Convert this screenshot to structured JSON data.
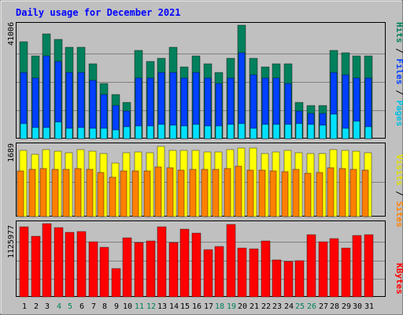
{
  "title": "Daily usage for December 2021",
  "colors": {
    "hits": "#00805c",
    "files": "#0040ff",
    "pages": "#00e0ff",
    "visits": "#ffff00",
    "sites": "#ff8000",
    "kbytes": "#ff0000",
    "title": "#0000ff",
    "weekend": "#00805c",
    "weekday": "#000000",
    "panel": "#c0c0c0"
  },
  "right_labels": {
    "pages": "Pages",
    "files": "Files",
    "hits": "Hits",
    "sep": " / ",
    "sites": "Sites",
    "visits": "Visits",
    "kbytes": "KBytes"
  },
  "chart_data": [
    {
      "type": "bar",
      "name": "hits-files-pages",
      "categories": [
        "1",
        "2",
        "3",
        "4",
        "5",
        "6",
        "7",
        "8",
        "9",
        "10",
        "11",
        "12",
        "13",
        "14",
        "15",
        "16",
        "17",
        "18",
        "19",
        "20",
        "21",
        "22",
        "23",
        "24",
        "25",
        "26",
        "27",
        "28",
        "29",
        "30",
        "31"
      ],
      "ymax_label": "41006",
      "ylim": [
        0,
        41006
      ],
      "series": [
        {
          "name": "Hits",
          "values": [
            35000,
            30000,
            38000,
            36000,
            33000,
            33000,
            27000,
            20000,
            16000,
            13000,
            32000,
            28000,
            29000,
            33000,
            26000,
            30000,
            27000,
            24000,
            29000,
            41000,
            29000,
            26000,
            27000,
            27000,
            13000,
            12000,
            12000,
            32000,
            31000,
            30000,
            30000
          ]
        },
        {
          "name": "Files",
          "values": [
            24000,
            22000,
            30000,
            28000,
            24000,
            24000,
            21000,
            16000,
            12000,
            10000,
            22000,
            22000,
            24000,
            24000,
            22000,
            24000,
            22000,
            20000,
            22000,
            31000,
            23000,
            22000,
            22000,
            20000,
            10000,
            9000,
            9000,
            24000,
            23000,
            22000,
            22000
          ]
        },
        {
          "name": "Pages",
          "values": [
            5500,
            4000,
            4000,
            6000,
            3800,
            4000,
            3800,
            3800,
            3000,
            4200,
            4500,
            4500,
            5200,
            4800,
            4600,
            5200,
            4500,
            4600,
            5000,
            5500,
            3800,
            5000,
            5200,
            5100,
            5400,
            5000,
            4800,
            8800,
            3800,
            6200,
            4200
          ]
        }
      ]
    },
    {
      "type": "bar",
      "name": "visits-sites",
      "categories": [
        "1",
        "2",
        "3",
        "4",
        "5",
        "6",
        "7",
        "8",
        "9",
        "10",
        "11",
        "12",
        "13",
        "14",
        "15",
        "16",
        "17",
        "18",
        "19",
        "20",
        "21",
        "22",
        "23",
        "24",
        "25",
        "26",
        "27",
        "28",
        "29",
        "30",
        "31"
      ],
      "ymax_label": "1689",
      "ylim": [
        0,
        1689
      ],
      "series": [
        {
          "name": "Visits",
          "values": [
            1590,
            1500,
            1610,
            1570,
            1540,
            1620,
            1570,
            1520,
            1290,
            1530,
            1560,
            1530,
            1690,
            1590,
            1590,
            1590,
            1560,
            1560,
            1610,
            1650,
            1650,
            1520,
            1560,
            1590,
            1530,
            1520,
            1520,
            1620,
            1600,
            1570,
            1540
          ]
        },
        {
          "name": "Sites",
          "values": [
            1110,
            1140,
            1160,
            1130,
            1140,
            1150,
            1130,
            1070,
            950,
            1110,
            1100,
            1110,
            1190,
            1170,
            1120,
            1140,
            1130,
            1130,
            1160,
            1210,
            1120,
            1120,
            1110,
            1080,
            1140,
            1050,
            1070,
            1170,
            1160,
            1140,
            1120
          ]
        }
      ]
    },
    {
      "type": "bar",
      "name": "kbytes",
      "categories": [
        "1",
        "2",
        "3",
        "4",
        "5",
        "6",
        "7",
        "8",
        "9",
        "10",
        "11",
        "12",
        "13",
        "14",
        "15",
        "16",
        "17",
        "18",
        "19",
        "20",
        "21",
        "22",
        "23",
        "24",
        "25",
        "26",
        "27",
        "28",
        "29",
        "30",
        "31"
      ],
      "ymax_label": "1125977",
      "ylim": [
        0,
        1125977
      ],
      "series": [
        {
          "name": "KBytes",
          "values": [
            1080000,
            930000,
            1120000,
            1070000,
            990000,
            1000000,
            850000,
            760000,
            430000,
            910000,
            840000,
            860000,
            1080000,
            840000,
            1040000,
            980000,
            730000,
            770000,
            1110000,
            750000,
            740000,
            860000,
            570000,
            550000,
            560000,
            960000,
            850000,
            900000,
            750000,
            940000,
            960000
          ]
        }
      ]
    }
  ]
}
